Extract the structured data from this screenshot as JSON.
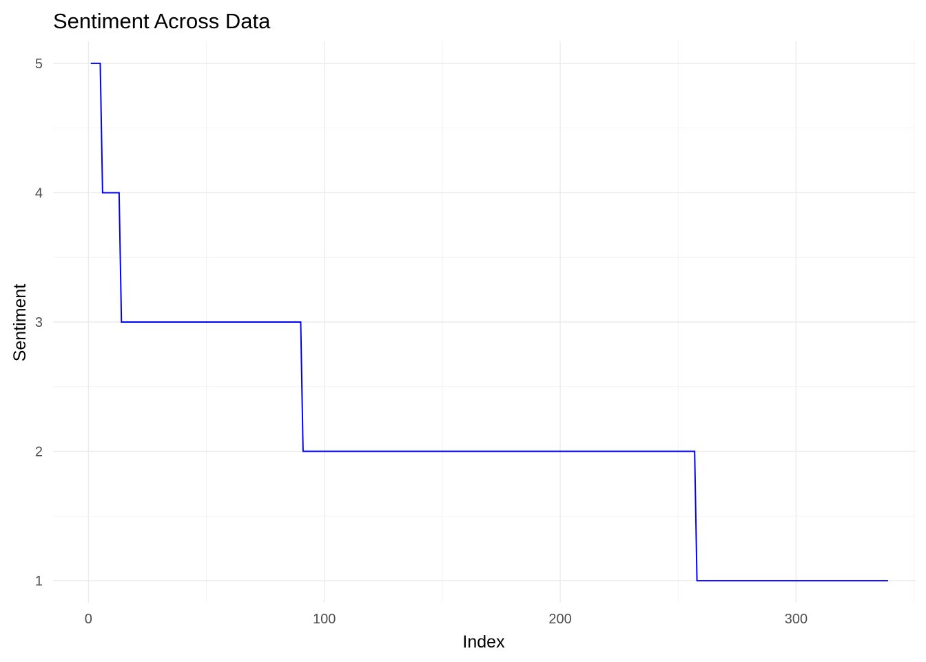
{
  "chart_data": {
    "type": "line",
    "title": "Sentiment Across Data",
    "xlabel": "Index",
    "ylabel": "Sentiment",
    "xlim": [
      -15,
      351
    ],
    "ylim": [
      0.83,
      5.17
    ],
    "x_ticks": [
      0,
      100,
      200,
      300
    ],
    "y_ticks": [
      1,
      2,
      3,
      4,
      5
    ],
    "grid": true,
    "legend": "none",
    "line_color": "#0000ff",
    "series": [
      {
        "x": [
          1,
          5,
          6,
          13,
          14,
          90,
          91,
          257,
          258,
          339
        ],
        "values": [
          5,
          5,
          4,
          4,
          3,
          3,
          2,
          2,
          1,
          1
        ]
      }
    ]
  }
}
